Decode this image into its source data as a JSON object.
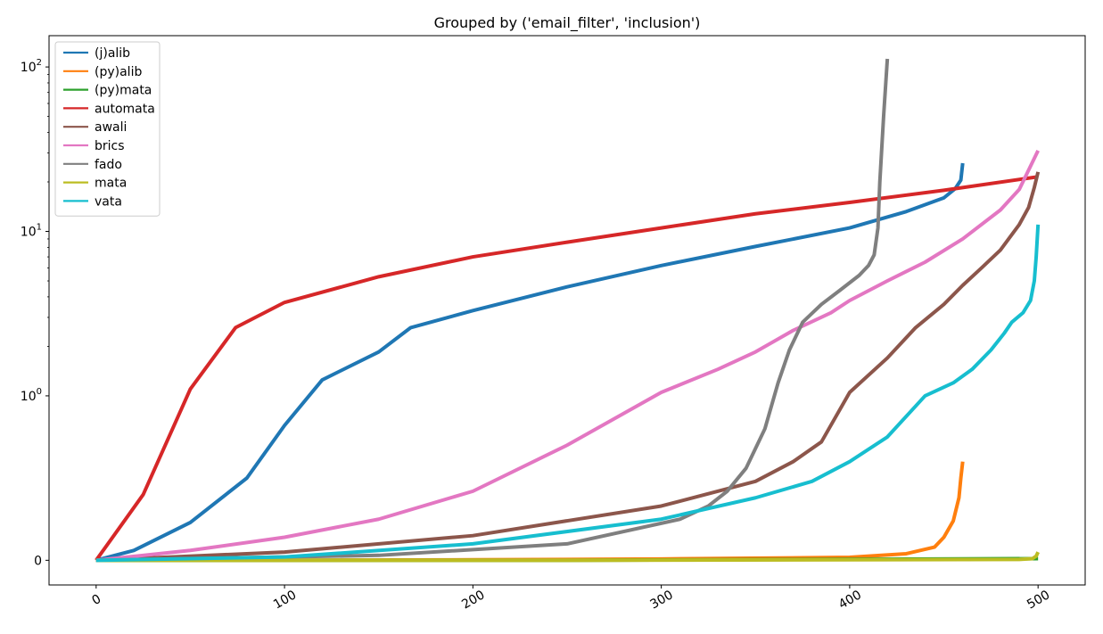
{
  "chart_data": {
    "type": "line",
    "title": "Grouped by ('email_filter', 'inclusion')",
    "xlabel": "",
    "ylabel": "",
    "xlim": [
      -25,
      525
    ],
    "ylim": [
      -0.15,
      155
    ],
    "yscale": "symlog",
    "linthresh": 1,
    "grid": false,
    "legend_position": "top-left",
    "x_ticks": [
      0,
      100,
      200,
      300,
      400,
      500
    ],
    "x_tick_labels": [
      "0",
      "100",
      "200",
      "300",
      "400",
      "500"
    ],
    "x_tick_rotation": -30,
    "y_ticks": [
      0,
      1,
      10,
      100
    ],
    "y_tick_labels": [
      "0",
      "10^0",
      "10^1",
      "10^2"
    ],
    "series": [
      {
        "name": "(j)alib",
        "color": "#1f77b4",
        "points": [
          [
            0,
            0
          ],
          [
            20,
            0.06
          ],
          [
            50,
            0.23
          ],
          [
            80,
            0.5
          ],
          [
            100,
            0.82
          ],
          [
            120,
            1.25
          ],
          [
            150,
            1.85
          ],
          [
            167,
            2.6
          ],
          [
            200,
            3.3
          ],
          [
            250,
            4.6
          ],
          [
            300,
            6.2
          ],
          [
            350,
            8.1
          ],
          [
            400,
            10.5
          ],
          [
            430,
            13.2
          ],
          [
            450,
            16.0
          ],
          [
            456,
            18.2
          ],
          [
            459,
            20.5
          ],
          [
            460,
            26
          ]
        ]
      },
      {
        "name": "(py)alib",
        "color": "#ff7f0e",
        "points": [
          [
            0,
            0
          ],
          [
            100,
            0
          ],
          [
            200,
            0.003
          ],
          [
            300,
            0.008
          ],
          [
            400,
            0.018
          ],
          [
            430,
            0.04
          ],
          [
            445,
            0.08
          ],
          [
            450,
            0.14
          ],
          [
            455,
            0.24
          ],
          [
            458,
            0.38
          ],
          [
            459,
            0.5
          ],
          [
            460,
            0.6
          ]
        ]
      },
      {
        "name": "(py)mata",
        "color": "#2ca02c",
        "points": [
          [
            0,
            0
          ],
          [
            250,
            0
          ],
          [
            500,
            0.01
          ]
        ]
      },
      {
        "name": "automata",
        "color": "#d62728",
        "points": [
          [
            0,
            0
          ],
          [
            25,
            0.4
          ],
          [
            50,
            1.1
          ],
          [
            74,
            2.6
          ],
          [
            100,
            3.7
          ],
          [
            150,
            5.3
          ],
          [
            200,
            7.0
          ],
          [
            250,
            8.6
          ],
          [
            300,
            10.5
          ],
          [
            350,
            12.8
          ],
          [
            400,
            15.0
          ],
          [
            450,
            17.8
          ],
          [
            500,
            21.5
          ]
        ]
      },
      {
        "name": "awali",
        "color": "#8c564b",
        "points": [
          [
            0,
            0
          ],
          [
            100,
            0.05
          ],
          [
            200,
            0.15
          ],
          [
            300,
            0.33
          ],
          [
            350,
            0.48
          ],
          [
            370,
            0.6
          ],
          [
            385,
            0.72
          ],
          [
            400,
            1.05
          ],
          [
            420,
            1.7
          ],
          [
            435,
            2.6
          ],
          [
            450,
            3.6
          ],
          [
            460,
            4.7
          ],
          [
            470,
            6.0
          ],
          [
            480,
            7.7
          ],
          [
            490,
            11.0
          ],
          [
            495,
            14.0
          ],
          [
            498,
            18.5
          ],
          [
            500,
            23
          ]
        ]
      },
      {
        "name": "brics",
        "color": "#e377c2",
        "points": [
          [
            0,
            0
          ],
          [
            50,
            0.06
          ],
          [
            100,
            0.14
          ],
          [
            150,
            0.25
          ],
          [
            200,
            0.42
          ],
          [
            250,
            0.7
          ],
          [
            300,
            1.05
          ],
          [
            330,
            1.45
          ],
          [
            350,
            1.85
          ],
          [
            370,
            2.5
          ],
          [
            390,
            3.2
          ],
          [
            400,
            3.8
          ],
          [
            420,
            5.0
          ],
          [
            440,
            6.5
          ],
          [
            460,
            9.0
          ],
          [
            480,
            13.5
          ],
          [
            490,
            18.0
          ],
          [
            500,
            31
          ]
        ]
      },
      {
        "name": "fado",
        "color": "#7f7f7f",
        "points": [
          [
            0,
            0
          ],
          [
            150,
            0.03
          ],
          [
            250,
            0.1
          ],
          [
            310,
            0.25
          ],
          [
            325,
            0.33
          ],
          [
            335,
            0.42
          ],
          [
            345,
            0.56
          ],
          [
            355,
            0.8
          ],
          [
            362,
            1.2
          ],
          [
            368,
            1.9
          ],
          [
            375,
            2.8
          ],
          [
            385,
            3.6
          ],
          [
            395,
            4.4
          ],
          [
            405,
            5.4
          ],
          [
            410,
            6.2
          ],
          [
            413,
            7.2
          ],
          [
            415,
            10.5
          ],
          [
            416,
            20
          ],
          [
            418,
            50
          ],
          [
            420,
            112
          ]
        ]
      },
      {
        "name": "mata",
        "color": "#bcbd22",
        "points": [
          [
            0,
            0
          ],
          [
            250,
            0
          ],
          [
            490,
            0.005
          ],
          [
            497,
            0.01
          ],
          [
            499,
            0.025
          ],
          [
            500,
            0.05
          ]
        ]
      },
      {
        "name": "vata",
        "color": "#17becf",
        "points": [
          [
            0,
            0
          ],
          [
            100,
            0.02
          ],
          [
            200,
            0.1
          ],
          [
            300,
            0.25
          ],
          [
            350,
            0.38
          ],
          [
            380,
            0.48
          ],
          [
            400,
            0.6
          ],
          [
            420,
            0.75
          ],
          [
            440,
            1.0
          ],
          [
            455,
            1.2
          ],
          [
            465,
            1.45
          ],
          [
            475,
            1.9
          ],
          [
            482,
            2.4
          ],
          [
            486,
            2.8
          ],
          [
            492,
            3.2
          ],
          [
            496,
            3.8
          ],
          [
            498,
            5.0
          ],
          [
            499,
            7.0
          ],
          [
            500,
            11
          ]
        ]
      }
    ]
  }
}
